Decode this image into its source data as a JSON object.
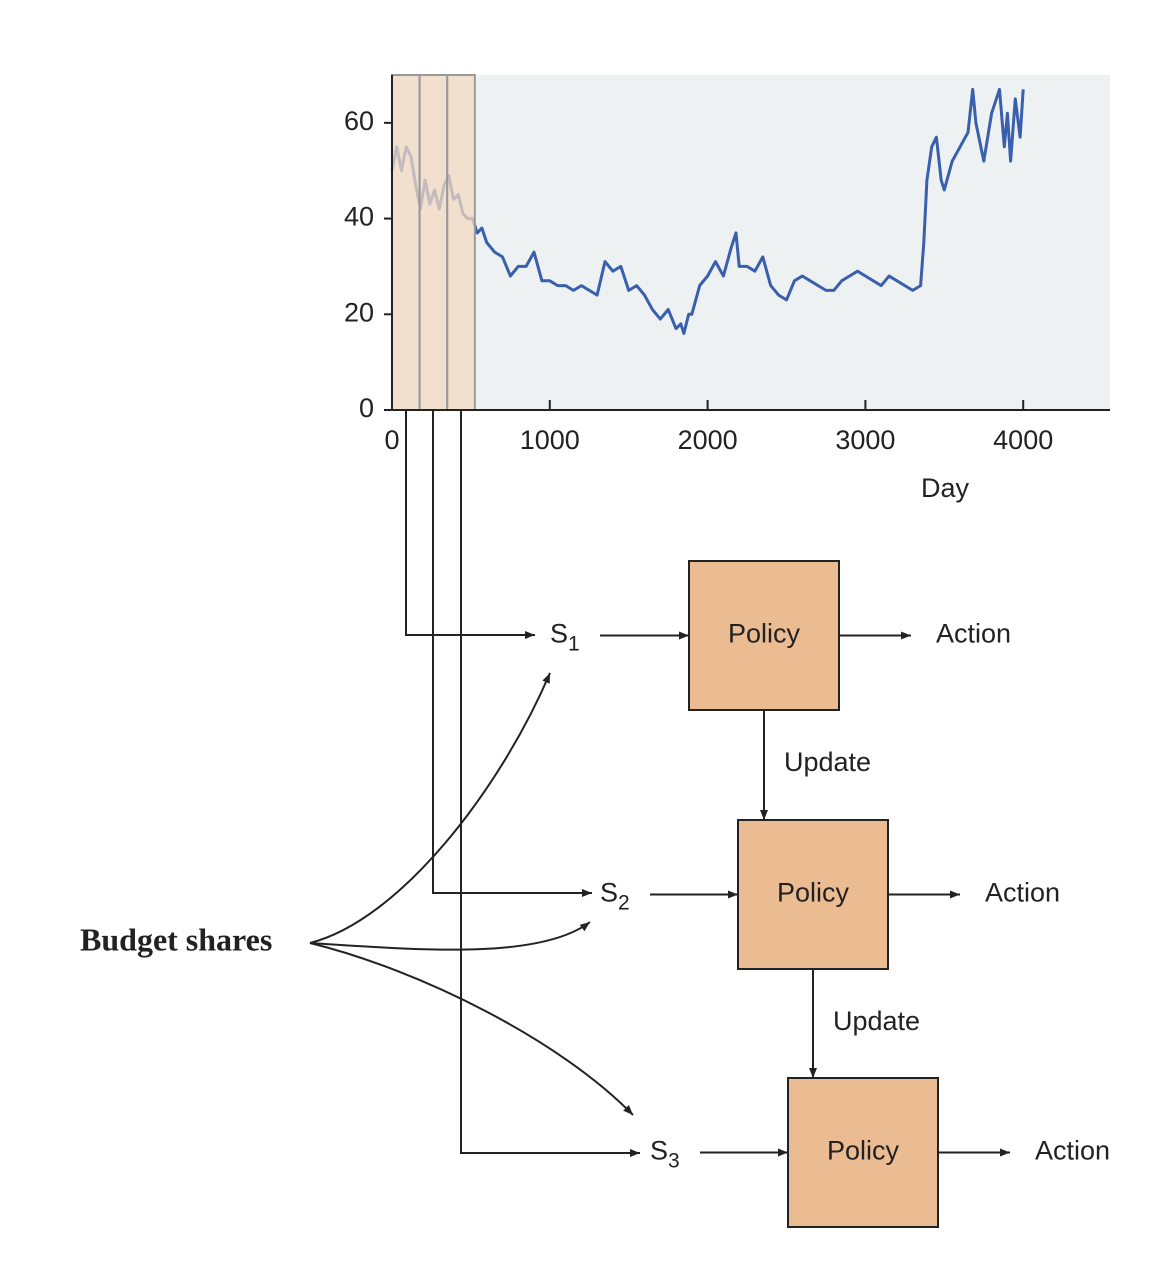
{
  "chart_data": {
    "type": "line",
    "xlabel": "Day",
    "x": [
      0,
      30,
      60,
      90,
      120,
      150,
      180,
      210,
      240,
      270,
      300,
      330,
      360,
      390,
      420,
      450,
      480,
      510,
      540,
      570,
      600,
      650,
      700,
      750,
      800,
      850,
      900,
      950,
      1000,
      1050,
      1100,
      1150,
      1200,
      1250,
      1300,
      1350,
      1400,
      1450,
      1500,
      1550,
      1600,
      1650,
      1700,
      1750,
      1800,
      1830,
      1850,
      1880,
      1900,
      1950,
      2000,
      2050,
      2100,
      2150,
      2180,
      2200,
      2250,
      2300,
      2350,
      2400,
      2450,
      2500,
      2550,
      2600,
      2650,
      2700,
      2750,
      2800,
      2850,
      2900,
      2950,
      3000,
      3050,
      3100,
      3150,
      3200,
      3250,
      3300,
      3350,
      3370,
      3390,
      3420,
      3450,
      3480,
      3500,
      3550,
      3600,
      3650,
      3680,
      3700,
      3750,
      3800,
      3850,
      3880,
      3900,
      3920,
      3950,
      3980,
      4000
    ],
    "values": [
      50,
      55,
      50,
      55,
      53,
      47,
      42,
      48,
      43,
      46,
      42,
      47,
      49,
      44,
      45,
      41,
      40,
      40,
      37,
      38,
      35,
      33,
      32,
      28,
      30,
      30,
      33,
      27,
      27,
      26,
      26,
      25,
      26,
      25,
      24,
      31,
      29,
      30,
      25,
      26,
      24,
      21,
      19,
      21,
      17,
      18,
      16,
      20,
      20,
      26,
      28,
      31,
      28,
      34,
      37,
      30,
      30,
      29,
      32,
      26,
      24,
      23,
      27,
      28,
      27,
      26,
      25,
      25,
      27,
      28,
      29,
      28,
      27,
      26,
      28,
      27,
      26,
      25,
      26,
      35,
      48,
      55,
      57,
      48,
      46,
      52,
      55,
      58,
      67,
      60,
      52,
      62,
      67,
      55,
      62,
      52,
      65,
      57,
      67
    ],
    "color": "#3a5fad",
    "xlim": [
      0,
      4550
    ],
    "ylim": [
      0,
      70
    ],
    "xticks": [
      0,
      1000,
      2000,
      3000,
      4000
    ],
    "yticks": [
      0,
      20,
      40,
      60
    ],
    "highlight_windows": [
      [
        0,
        175
      ],
      [
        175,
        350
      ],
      [
        350,
        525
      ]
    ]
  },
  "diagram": {
    "source_label": "Budget shares",
    "states": [
      {
        "name": "S",
        "subscript": "1"
      },
      {
        "name": "S",
        "subscript": "2"
      },
      {
        "name": "S",
        "subscript": "3"
      }
    ],
    "policies": [
      "Policy",
      "Policy",
      "Policy"
    ],
    "actions": [
      "Action",
      "Action",
      "Action"
    ],
    "updates": [
      "Update",
      "Update"
    ]
  }
}
